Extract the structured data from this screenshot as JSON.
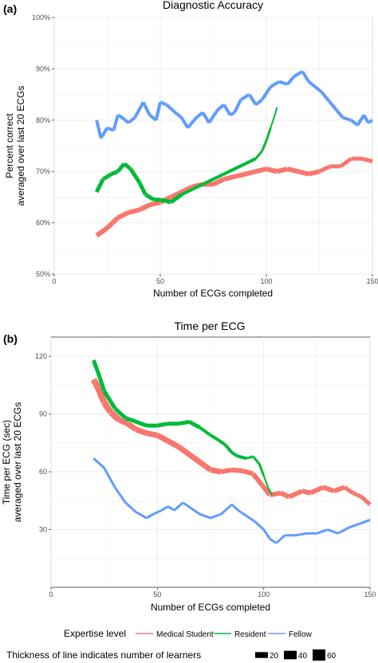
{
  "chart_data": [
    {
      "type": "line",
      "panel_label": "(a)",
      "title": "Diagnostic Accuracy",
      "xlabel": "Number of ECGs completed",
      "ylabel_lines": [
        "Percent correct",
        "averaged over last 20 ECGs"
      ],
      "xlim": [
        0,
        150
      ],
      "ylim": [
        50,
        100
      ],
      "x_ticks": [
        0,
        50,
        100,
        150
      ],
      "y_ticks": [
        50,
        60,
        70,
        80,
        90,
        100
      ],
      "y_tick_labels": [
        "50%",
        "60%",
        "70%",
        "80%",
        "90%",
        "100%"
      ],
      "grid": true,
      "series": [
        {
          "name": "Medical Student",
          "color": "#F8766D",
          "points": [
            [
              20,
              57.5
            ],
            [
              25,
              59
            ],
            [
              30,
              61
            ],
            [
              35,
              62
            ],
            [
              40,
              62.5
            ],
            [
              45,
              63.5
            ],
            [
              50,
              64
            ],
            [
              55,
              65
            ],
            [
              60,
              66
            ],
            [
              65,
              67
            ],
            [
              70,
              67.5
            ],
            [
              75,
              67.5
            ],
            [
              80,
              68.5
            ],
            [
              85,
              69
            ],
            [
              90,
              69.5
            ],
            [
              95,
              70
            ],
            [
              100,
              70.5
            ],
            [
              105,
              70
            ],
            [
              110,
              70.5
            ],
            [
              115,
              70
            ],
            [
              120,
              69.5
            ],
            [
              125,
              70
            ],
            [
              130,
              71
            ],
            [
              135,
              71
            ],
            [
              140,
              72.5
            ],
            [
              145,
              72.5
            ],
            [
              150,
              72
            ]
          ],
          "thickness": [
            6,
            6,
            6,
            6,
            6,
            6,
            6,
            6,
            6,
            6,
            6,
            6,
            6,
            6,
            6,
            6,
            6,
            6,
            6,
            6,
            6,
            5,
            5,
            5,
            5,
            5,
            5
          ]
        },
        {
          "name": "Resident",
          "color": "#00BA38",
          "points": [
            [
              20,
              66
            ],
            [
              23,
              68.5
            ],
            [
              27,
              69.5
            ],
            [
              30,
              70
            ],
            [
              33,
              71.5
            ],
            [
              36,
              70.5
            ],
            [
              40,
              68
            ],
            [
              43,
              65.5
            ],
            [
              47,
              64.5
            ],
            [
              50,
              64.5
            ],
            [
              55,
              64
            ],
            [
              60,
              65.5
            ],
            [
              65,
              66.5
            ],
            [
              70,
              67.5
            ],
            [
              75,
              68.5
            ],
            [
              80,
              69.5
            ],
            [
              85,
              70.5
            ],
            [
              90,
              71.5
            ],
            [
              95,
              72.5
            ],
            [
              98,
              74
            ],
            [
              100,
              76
            ],
            [
              102,
              78.5
            ],
            [
              104,
              81
            ],
            [
              105,
              82.5
            ]
          ],
          "thickness": [
            5,
            5,
            5,
            5,
            5,
            5,
            5,
            5,
            5,
            5,
            5,
            4,
            4,
            4,
            4,
            4,
            4,
            4,
            3,
            3,
            3,
            2,
            2,
            2
          ]
        },
        {
          "name": "Fellow",
          "color": "#619CFF",
          "points": [
            [
              20,
              80
            ],
            [
              22,
              76.5
            ],
            [
              25,
              78.5
            ],
            [
              28,
              78
            ],
            [
              30,
              81
            ],
            [
              32,
              80.5
            ],
            [
              35,
              79.5
            ],
            [
              38,
              80.5
            ],
            [
              42,
              83.5
            ],
            [
              45,
              81
            ],
            [
              48,
              80
            ],
            [
              50,
              83.5
            ],
            [
              53,
              83
            ],
            [
              57,
              81.5
            ],
            [
              60,
              80.5
            ],
            [
              63,
              78.5
            ],
            [
              67,
              80.5
            ],
            [
              70,
              81.5
            ],
            [
              73,
              79.5
            ],
            [
              77,
              82
            ],
            [
              80,
              83
            ],
            [
              83,
              81
            ],
            [
              85,
              81.5
            ],
            [
              88,
              84
            ],
            [
              92,
              85
            ],
            [
              95,
              83
            ],
            [
              98,
              84
            ],
            [
              102,
              86.5
            ],
            [
              106,
              87.5
            ],
            [
              110,
              87
            ],
            [
              113,
              88.5
            ],
            [
              117,
              89.5
            ],
            [
              120,
              87.5
            ],
            [
              123,
              86.5
            ],
            [
              126,
              85.5
            ],
            [
              130,
              83.5
            ],
            [
              133,
              82
            ],
            [
              136,
              80.5
            ],
            [
              140,
              80
            ],
            [
              143,
              79
            ],
            [
              146,
              81
            ],
            [
              148,
              79.5
            ],
            [
              150,
              80
            ]
          ],
          "thickness": [
            4,
            4,
            4,
            4,
            4,
            4,
            4,
            4,
            4,
            4,
            4,
            4,
            4,
            4,
            4,
            4,
            4,
            4,
            4,
            4,
            4,
            4,
            4,
            4,
            4,
            4,
            4,
            4,
            4,
            4,
            4,
            4,
            4,
            4,
            4,
            4,
            4,
            4,
            4,
            4,
            4,
            4,
            4
          ]
        }
      ]
    },
    {
      "type": "line",
      "panel_label": "(b)",
      "title": "Time per ECG",
      "xlabel": "Number of ECGs completed",
      "ylabel_lines": [
        "Time per ECG (sec)",
        "averaged over last 20 ECGs"
      ],
      "xlim": [
        0,
        150
      ],
      "ylim": [
        0,
        130
      ],
      "x_ticks": [
        0,
        50,
        100,
        150
      ],
      "y_ticks": [
        30,
        60,
        90,
        120
      ],
      "y_tick_labels": [
        "30",
        "60",
        "90",
        "120"
      ],
      "grid": true,
      "series": [
        {
          "name": "Medical Student",
          "color": "#F8766D",
          "points": [
            [
              20,
              108
            ],
            [
              22,
              104
            ],
            [
              25,
              96
            ],
            [
              28,
              91
            ],
            [
              32,
              87
            ],
            [
              36,
              85
            ],
            [
              40,
              82
            ],
            [
              45,
              80
            ],
            [
              50,
              79
            ],
            [
              55,
              76
            ],
            [
              60,
              73
            ],
            [
              65,
              69
            ],
            [
              70,
              65
            ],
            [
              75,
              61
            ],
            [
              80,
              60
            ],
            [
              85,
              61
            ],
            [
              90,
              60.5
            ],
            [
              95,
              59
            ],
            [
              100,
              52
            ],
            [
              103,
              48
            ],
            [
              108,
              49
            ],
            [
              112,
              47
            ],
            [
              118,
              50
            ],
            [
              122,
              49
            ],
            [
              128,
              52
            ],
            [
              133,
              50
            ],
            [
              138,
              52
            ],
            [
              142,
              49
            ],
            [
              146,
              47
            ],
            [
              150,
              43
            ]
          ],
          "thickness": [
            8,
            8,
            8,
            8,
            7,
            7,
            7,
            7,
            7,
            7,
            7,
            7,
            7,
            7,
            6,
            6,
            6,
            6,
            6,
            6,
            6,
            6,
            6,
            6,
            6,
            6,
            5,
            5,
            5,
            5
          ]
        },
        {
          "name": "Resident",
          "color": "#00BA38",
          "points": [
            [
              20,
              118
            ],
            [
              22,
              112
            ],
            [
              25,
              102
            ],
            [
              30,
              93
            ],
            [
              35,
              88
            ],
            [
              40,
              86
            ],
            [
              45,
              84
            ],
            [
              50,
              84
            ],
            [
              55,
              85
            ],
            [
              60,
              85
            ],
            [
              65,
              86
            ],
            [
              70,
              83
            ],
            [
              75,
              79
            ],
            [
              78,
              77
            ],
            [
              82,
              74
            ],
            [
              85,
              70
            ],
            [
              88,
              68
            ],
            [
              92,
              67
            ],
            [
              95,
              68
            ],
            [
              98,
              64
            ],
            [
              100,
              58
            ],
            [
              102,
              52
            ],
            [
              104,
              48
            ]
          ],
          "thickness": [
            5,
            5,
            5,
            5,
            5,
            5,
            5,
            5,
            5,
            5,
            5,
            4,
            4,
            4,
            4,
            4,
            4,
            3,
            3,
            3,
            2,
            2,
            2
          ]
        },
        {
          "name": "Fellow",
          "color": "#619CFF",
          "points": [
            [
              20,
              67
            ],
            [
              25,
              62
            ],
            [
              30,
              52
            ],
            [
              35,
              44
            ],
            [
              40,
              39
            ],
            [
              45,
              36
            ],
            [
              48,
              38
            ],
            [
              52,
              40
            ],
            [
              55,
              42
            ],
            [
              58,
              40
            ],
            [
              62,
              44
            ],
            [
              66,
              41
            ],
            [
              70,
              38
            ],
            [
              75,
              36
            ],
            [
              80,
              38
            ],
            [
              85,
              43
            ],
            [
              88,
              40
            ],
            [
              92,
              37
            ],
            [
              96,
              34
            ],
            [
              100,
              30
            ],
            [
              103,
              25
            ],
            [
              106,
              23
            ],
            [
              110,
              27
            ],
            [
              115,
              27
            ],
            [
              120,
              28
            ],
            [
              125,
              28
            ],
            [
              130,
              30
            ],
            [
              135,
              28
            ],
            [
              140,
              31
            ],
            [
              145,
              33
            ],
            [
              150,
              35
            ]
          ],
          "thickness": [
            3,
            3,
            3,
            3,
            3,
            3,
            3,
            3,
            3,
            3,
            3,
            3,
            3,
            3,
            3,
            3,
            3,
            3,
            3,
            3,
            3,
            3,
            3,
            3,
            3,
            3,
            3,
            3,
            3,
            3,
            3
          ]
        }
      ]
    }
  ],
  "legend": {
    "title": "Expertise level",
    "items": [
      {
        "label": "Medical Student",
        "color": "#F8766D"
      },
      {
        "label": "Resident",
        "color": "#00BA38"
      },
      {
        "label": "Fellow",
        "color": "#619CFF"
      }
    ],
    "thickness_title": "Thickness of line indicates number of learners",
    "thickness_items": [
      {
        "label": "20",
        "size": 20
      },
      {
        "label": "40",
        "size": 40
      },
      {
        "label": "60",
        "size": 60
      }
    ]
  }
}
